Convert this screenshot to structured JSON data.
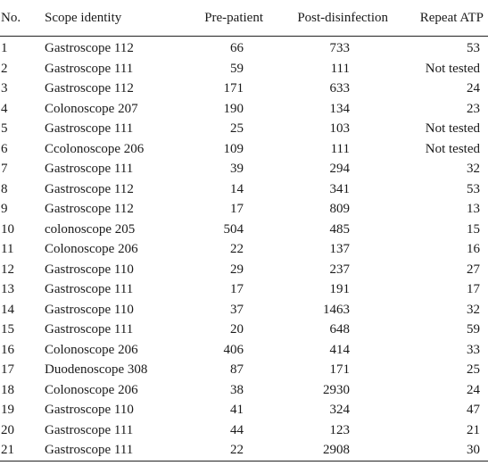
{
  "table": {
    "headers": {
      "no": "No.",
      "scope": "Scope identity",
      "pre": "Pre-patient",
      "post": "Post-disinfection",
      "repeat": "Repeat ATP"
    },
    "rows": [
      {
        "no": "1",
        "scope": "Gastroscope 112",
        "pre": "66",
        "post": "733",
        "repeat": "53"
      },
      {
        "no": "2",
        "scope": "Gastroscope 111",
        "pre": "59",
        "post": "111",
        "repeat": "Not tested"
      },
      {
        "no": "3",
        "scope": "Gastroscope 112",
        "pre": "171",
        "post": "633",
        "repeat": "24"
      },
      {
        "no": "4",
        "scope": "Colonoscope 207",
        "pre": "190",
        "post": "134",
        "repeat": "23"
      },
      {
        "no": "5",
        "scope": "Gastroscope 111",
        "pre": "25",
        "post": "103",
        "repeat": "Not tested"
      },
      {
        "no": "6",
        "scope": "Ccolonoscope 206",
        "pre": "109",
        "post": "111",
        "repeat": "Not tested"
      },
      {
        "no": "7",
        "scope": "Gastroscope 111",
        "pre": "39",
        "post": "294",
        "repeat": "32"
      },
      {
        "no": "8",
        "scope": "Gastroscope 112",
        "pre": "14",
        "post": "341",
        "repeat": "53"
      },
      {
        "no": "9",
        "scope": "Gastroscope 112",
        "pre": "17",
        "post": "809",
        "repeat": "13"
      },
      {
        "no": "10",
        "scope": "colonoscope 205",
        "pre": "504",
        "post": "485",
        "repeat": "15"
      },
      {
        "no": "11",
        "scope": "Colonoscope 206",
        "pre": "22",
        "post": "137",
        "repeat": "16"
      },
      {
        "no": "12",
        "scope": "Gastroscope 110",
        "pre": "29",
        "post": "237",
        "repeat": "27"
      },
      {
        "no": "13",
        "scope": "Gastroscope 111",
        "pre": "17",
        "post": "191",
        "repeat": "17"
      },
      {
        "no": "14",
        "scope": "Gastroscope 110",
        "pre": "37",
        "post": "1463",
        "repeat": "32"
      },
      {
        "no": "15",
        "scope": "Gastroscope 111",
        "pre": "20",
        "post": "648",
        "repeat": "59"
      },
      {
        "no": "16",
        "scope": "Colonoscope 206",
        "pre": "406",
        "post": "414",
        "repeat": "33"
      },
      {
        "no": "17",
        "scope": "Duodenoscope 308",
        "pre": "87",
        "post": "171",
        "repeat": "25"
      },
      {
        "no": "18",
        "scope": "Colonoscope 206",
        "pre": "38",
        "post": "2930",
        "repeat": "24"
      },
      {
        "no": "19",
        "scope": "Gastroscope 110",
        "pre": "41",
        "post": "324",
        "repeat": "47"
      },
      {
        "no": "20",
        "scope": "Gastroscope 111",
        "pre": "44",
        "post": "123",
        "repeat": "21"
      },
      {
        "no": "21",
        "scope": "Gastroscope 111",
        "pre": "22",
        "post": "2908",
        "repeat": "30"
      }
    ]
  }
}
